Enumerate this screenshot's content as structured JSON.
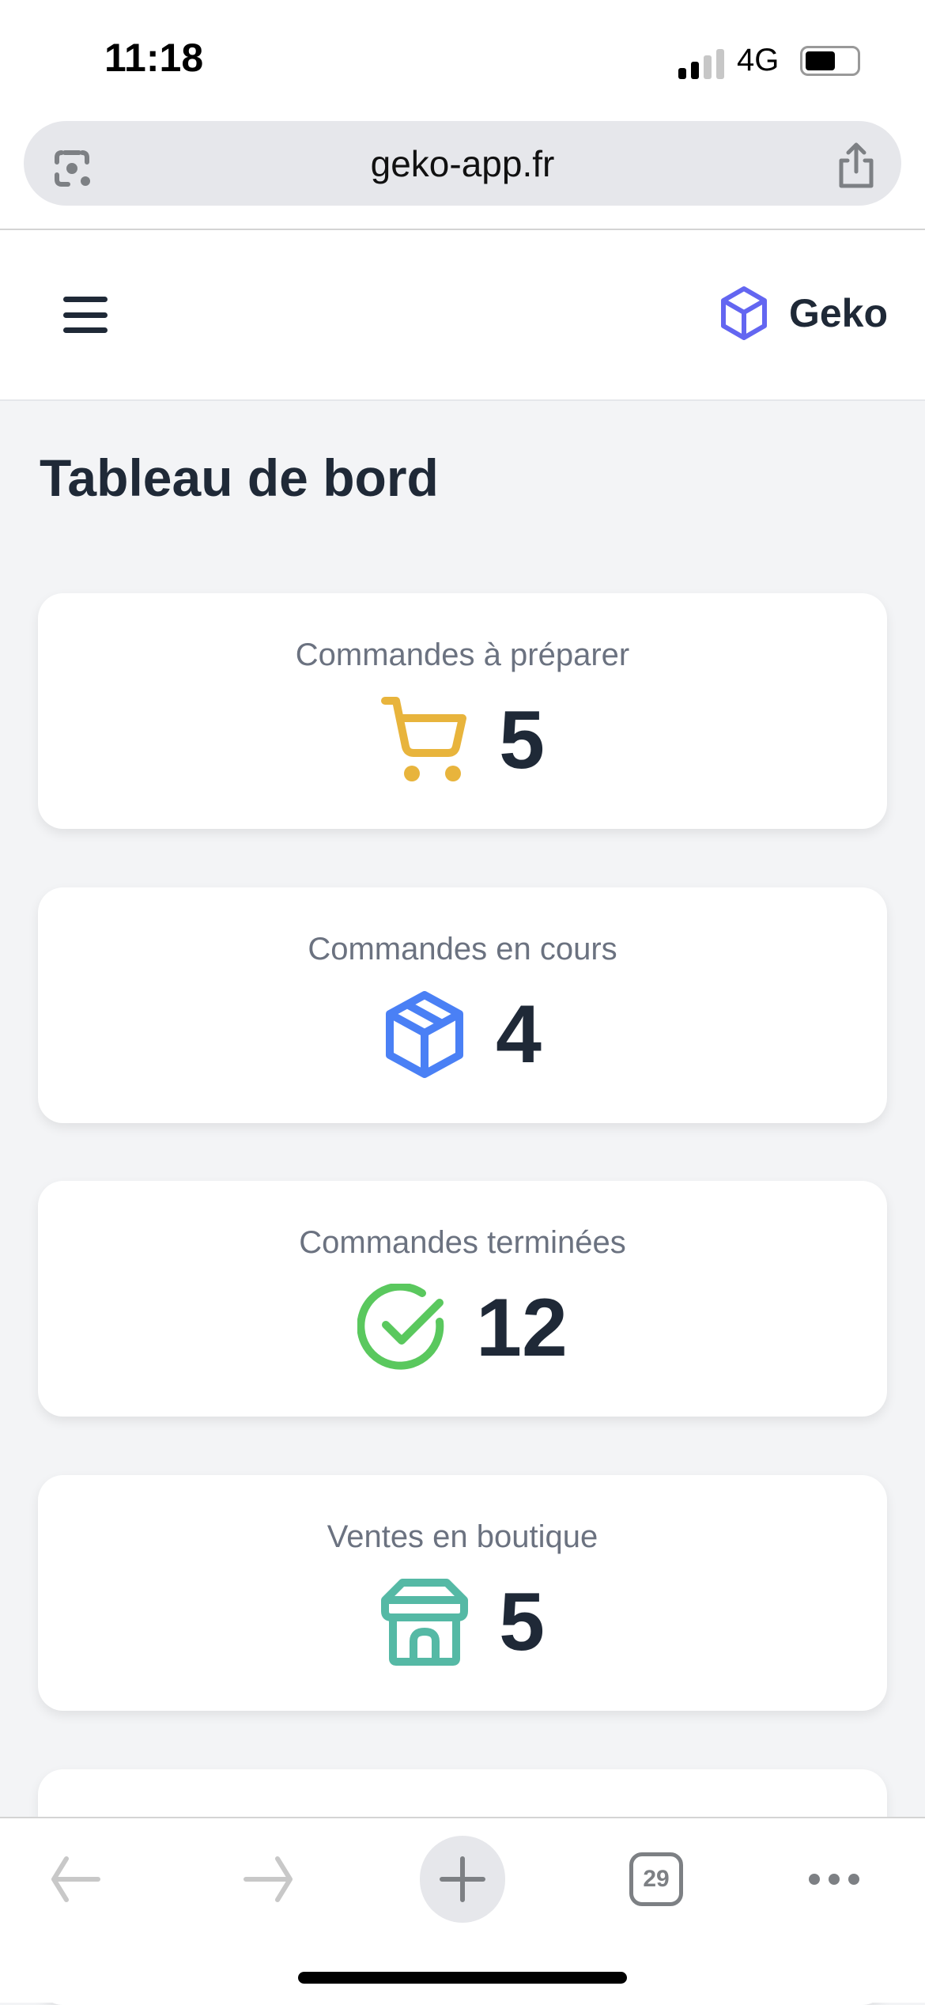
{
  "status_bar": {
    "time": "11:18",
    "network": "4G",
    "battery_level": 0.6
  },
  "browser": {
    "url": "geko-app.fr",
    "tab_count": "29"
  },
  "header": {
    "brand": "Geko",
    "brand_color": "#6366f1"
  },
  "page": {
    "title": "Tableau de bord"
  },
  "cards": [
    {
      "label": "Commandes à préparer",
      "value": "5",
      "icon": "shopping-cart-icon",
      "color": "#e8b43c"
    },
    {
      "label": "Commandes en cours",
      "value": "4",
      "icon": "package-icon",
      "color": "#4a80f5"
    },
    {
      "label": "Commandes terminées",
      "value": "12",
      "icon": "check-circle-icon",
      "color": "#5ac85e"
    },
    {
      "label": "Ventes en boutique",
      "value": "5",
      "icon": "store-icon",
      "color": "#55b9a5"
    }
  ]
}
